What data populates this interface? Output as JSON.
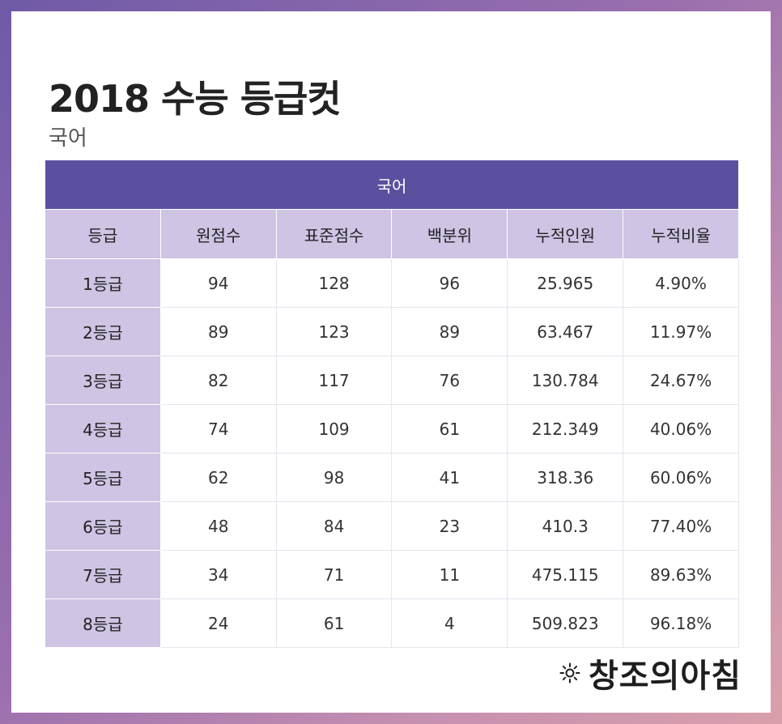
{
  "header": {
    "title": "2018 수능 등급컷",
    "subtitle": "국어"
  },
  "table": {
    "section_label": "국어",
    "columns": [
      "등급",
      "원점수",
      "표준점수",
      "백분위",
      "누적인원",
      "누적비율"
    ],
    "rows": [
      [
        "1등급",
        "94",
        "128",
        "96",
        "25.965",
        "4.90%"
      ],
      [
        "2등급",
        "89",
        "123",
        "89",
        "63.467",
        "11.97%"
      ],
      [
        "3등급",
        "82",
        "117",
        "76",
        "130.784",
        "24.67%"
      ],
      [
        "4등급",
        "74",
        "109",
        "61",
        "212.349",
        "40.06%"
      ],
      [
        "5등급",
        "62",
        "98",
        "41",
        "318.36",
        "60.06%"
      ],
      [
        "6등급",
        "48",
        "84",
        "23",
        "410.3",
        "77.40%"
      ],
      [
        "7등급",
        "34",
        "71",
        "11",
        "475.115",
        "89.63%"
      ],
      [
        "8등급",
        "24",
        "61",
        "4",
        "509.823",
        "96.18%"
      ]
    ]
  },
  "logo": {
    "icon": "sun-icon",
    "text": "창조의아침"
  },
  "colors": {
    "header_bg": "#5a50a0",
    "label_bg": "#cfc4e4"
  }
}
